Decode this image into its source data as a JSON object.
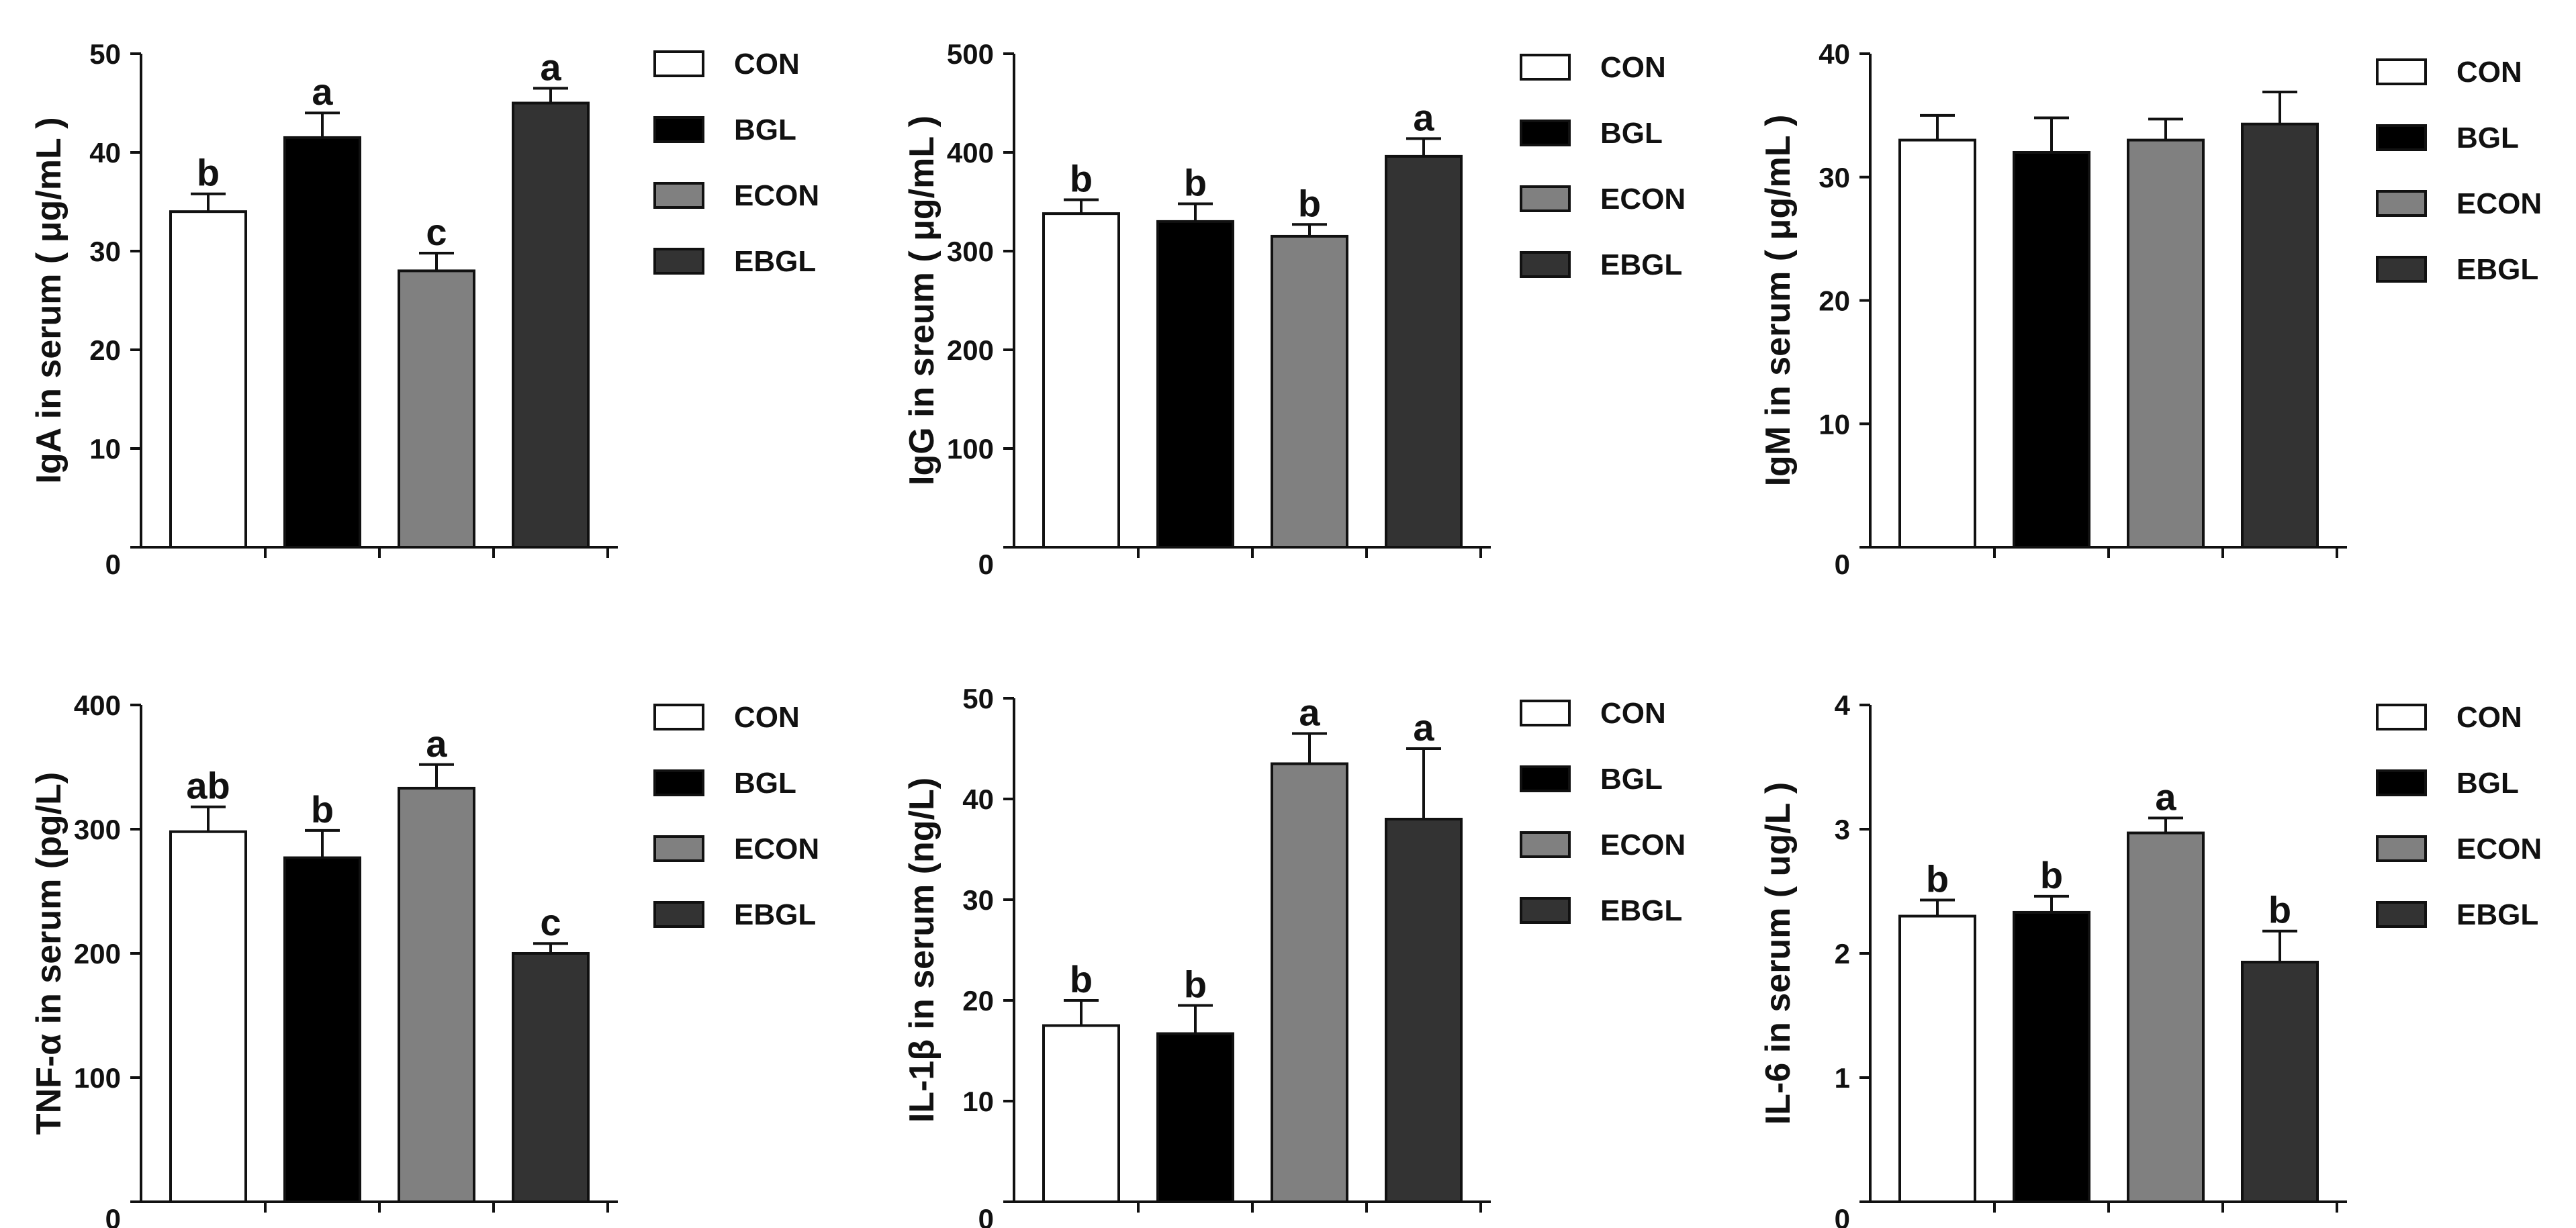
{
  "legend": {
    "entries": [
      {
        "label": "CON",
        "color": "#ffffff"
      },
      {
        "label": "BGL",
        "color": "#000000"
      },
      {
        "label": "ECON",
        "color": "#808080"
      },
      {
        "label": "EBGL",
        "color": "#333333"
      }
    ]
  },
  "chart_data": [
    {
      "type": "bar",
      "categories": [
        "CON",
        "BGL",
        "ECON",
        "EBGL"
      ],
      "values": [
        34,
        41.5,
        28,
        45
      ],
      "errors": [
        1.8,
        2.5,
        1.8,
        1.5
      ],
      "significance": [
        "b",
        "a",
        "c",
        "a"
      ],
      "ylabel": "IgA in serum ( μg/mL )",
      "ylim": [
        0,
        50
      ],
      "yticks": [
        0,
        10,
        20,
        30,
        40,
        50
      ]
    },
    {
      "type": "bar",
      "categories": [
        "CON",
        "BGL",
        "ECON",
        "EBGL"
      ],
      "values": [
        338,
        330,
        315,
        396
      ],
      "errors": [
        14,
        18,
        12,
        18
      ],
      "significance": [
        "b",
        "b",
        "b",
        "a"
      ],
      "ylabel": "IgG in sreum ( μg/mL )",
      "ylim": [
        0,
        500
      ],
      "yticks": [
        0,
        100,
        200,
        300,
        400,
        500
      ]
    },
    {
      "type": "bar",
      "categories": [
        "CON",
        "BGL",
        "ECON",
        "EBGL"
      ],
      "values": [
        33,
        32,
        33,
        34.3
      ],
      "errors": [
        2,
        2.8,
        1.7,
        2.6
      ],
      "significance": [
        "",
        "",
        "",
        ""
      ],
      "ylabel": "IgM in serum ( μg/mL )",
      "ylim": [
        0,
        40
      ],
      "yticks": [
        0,
        10,
        20,
        30,
        40
      ]
    },
    {
      "type": "bar",
      "categories": [
        "CON",
        "BGL",
        "ECON",
        "EBGL"
      ],
      "values": [
        298,
        277,
        333,
        200
      ],
      "errors": [
        20,
        22,
        19,
        8
      ],
      "significance": [
        "ab",
        "b",
        "a",
        "c"
      ],
      "ylabel": "TNF-α in serum (pg/L)",
      "ylim": [
        0,
        400
      ],
      "yticks": [
        0,
        100,
        200,
        300,
        400
      ]
    },
    {
      "type": "bar",
      "categories": [
        "CON",
        "BGL",
        "ECON",
        "EBGL"
      ],
      "values": [
        17.5,
        16.7,
        43.5,
        38
      ],
      "errors": [
        2.5,
        2.8,
        3,
        7
      ],
      "significance": [
        "b",
        "b",
        "a",
        "a"
      ],
      "ylabel": "IL-1β in serum (ng/L)",
      "ylim": [
        0,
        50
      ],
      "yticks": [
        0,
        10,
        20,
        30,
        40,
        50
      ]
    },
    {
      "type": "bar",
      "categories": [
        "CON",
        "BGL",
        "ECON",
        "EBGL"
      ],
      "values": [
        2.3,
        2.33,
        2.97,
        1.93
      ],
      "errors": [
        0.13,
        0.13,
        0.12,
        0.25
      ],
      "significance": [
        "b",
        "b",
        "a",
        "b"
      ],
      "ylabel": "IL-6 in serum ( ug/L )",
      "ylim": [
        0,
        4
      ],
      "yticks": [
        0,
        1,
        2,
        3,
        4
      ]
    }
  ]
}
